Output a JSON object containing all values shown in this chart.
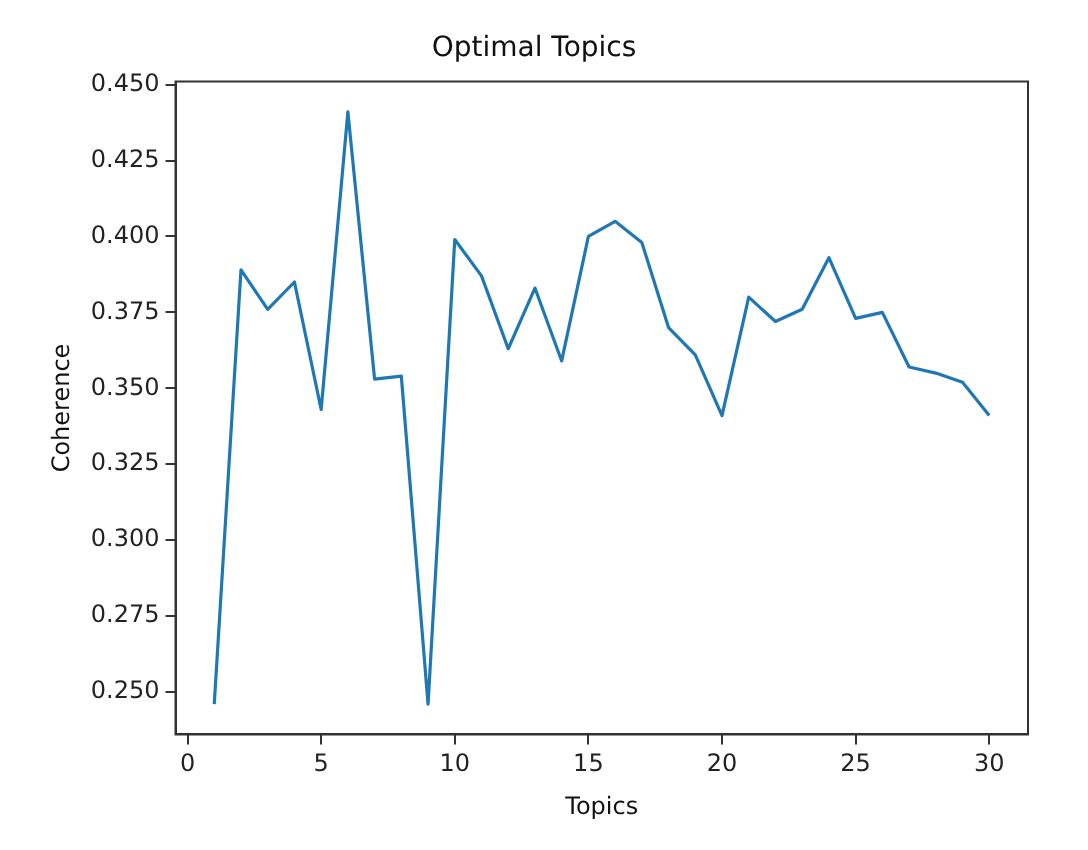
{
  "chart_data": {
    "type": "line",
    "title": "Optimal Topics",
    "xlabel": "Topics",
    "ylabel": "Coherence",
    "x": [
      1,
      2,
      3,
      4,
      5,
      6,
      7,
      8,
      9,
      10,
      11,
      12,
      13,
      14,
      15,
      16,
      17,
      18,
      19,
      20,
      21,
      22,
      23,
      24,
      25,
      26,
      27,
      28,
      29,
      30
    ],
    "series": [
      {
        "color": "#1f77b4",
        "values": [
          0.246,
          0.389,
          0.376,
          0.385,
          0.343,
          0.441,
          0.353,
          0.354,
          0.246,
          0.399,
          0.387,
          0.363,
          0.383,
          0.359,
          0.4,
          0.405,
          0.398,
          0.37,
          0.361,
          0.341,
          0.38,
          0.372,
          0.376,
          0.393,
          0.373,
          0.375,
          0.357,
          0.355,
          0.352,
          0.341
        ]
      }
    ],
    "xlim": [
      -0.45,
      31.45
    ],
    "xticks": [
      0,
      5,
      10,
      15,
      20,
      25,
      30
    ],
    "ylim": [
      0.236,
      0.451
    ],
    "yticks": [
      {
        "value": 0.25,
        "label": "0.250"
      },
      {
        "value": 0.275,
        "label": "0.275"
      },
      {
        "value": 0.3,
        "label": "0.300"
      },
      {
        "value": 0.325,
        "label": "0.325"
      },
      {
        "value": 0.35,
        "label": "0.350"
      },
      {
        "value": 0.375,
        "label": "0.375"
      },
      {
        "value": 0.4,
        "label": "0.400"
      },
      {
        "value": 0.425,
        "label": "0.425"
      },
      {
        "value": 0.45,
        "label": "0.450"
      }
    ],
    "grid": false,
    "legend": false,
    "marker": "none",
    "line_style": "solid"
  }
}
